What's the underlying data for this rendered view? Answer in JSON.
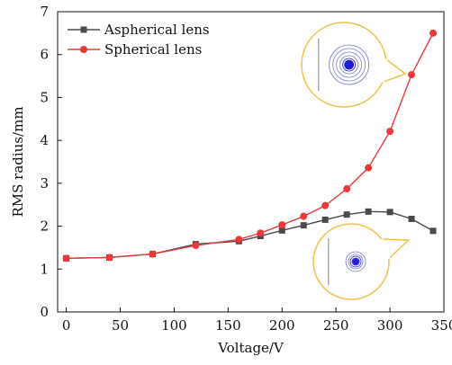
{
  "chart_data": {
    "type": "line",
    "title": "",
    "xlabel": "Voltage/V",
    "ylabel": "RMS radius/mm",
    "xlim": [
      -8,
      350
    ],
    "ylim": [
      0,
      7
    ],
    "x_ticks": [
      0,
      50,
      100,
      150,
      200,
      250,
      300,
      350
    ],
    "y_ticks": [
      0,
      1,
      2,
      3,
      4,
      5,
      6,
      7
    ],
    "grid": false,
    "legend_position": "top-left",
    "series": [
      {
        "name": "Aspherical lens",
        "color": "#4a4a4a",
        "marker": "square",
        "x": [
          0,
          40,
          80,
          120,
          160,
          180,
          200,
          220,
          240,
          260,
          280,
          300,
          320,
          340
        ],
        "y": [
          1.25,
          1.27,
          1.35,
          1.58,
          1.65,
          1.77,
          1.9,
          2.02,
          2.15,
          2.27,
          2.34,
          2.33,
          2.17,
          1.89
        ]
      },
      {
        "name": "Spherical lens",
        "color": "#e8393b",
        "marker": "circle",
        "x": [
          0,
          40,
          80,
          120,
          160,
          180,
          200,
          220,
          240,
          260,
          280,
          300,
          320,
          340
        ],
        "y": [
          1.25,
          1.27,
          1.35,
          1.55,
          1.69,
          1.84,
          2.03,
          2.23,
          2.48,
          2.87,
          3.36,
          4.21,
          5.53,
          6.5
        ]
      }
    ],
    "insets": [
      {
        "name": "spherical-spot-diagram",
        "anchor_x": 320,
        "anchor_y": 5.53
      },
      {
        "name": "aspherical-spot-diagram",
        "anchor_x": 340,
        "anchor_y": 1.89
      }
    ]
  },
  "colors": {
    "inset_outline": "#f2c14a",
    "spot_outer": "#7a7ad8",
    "spot_core": "#1c1cd6"
  }
}
